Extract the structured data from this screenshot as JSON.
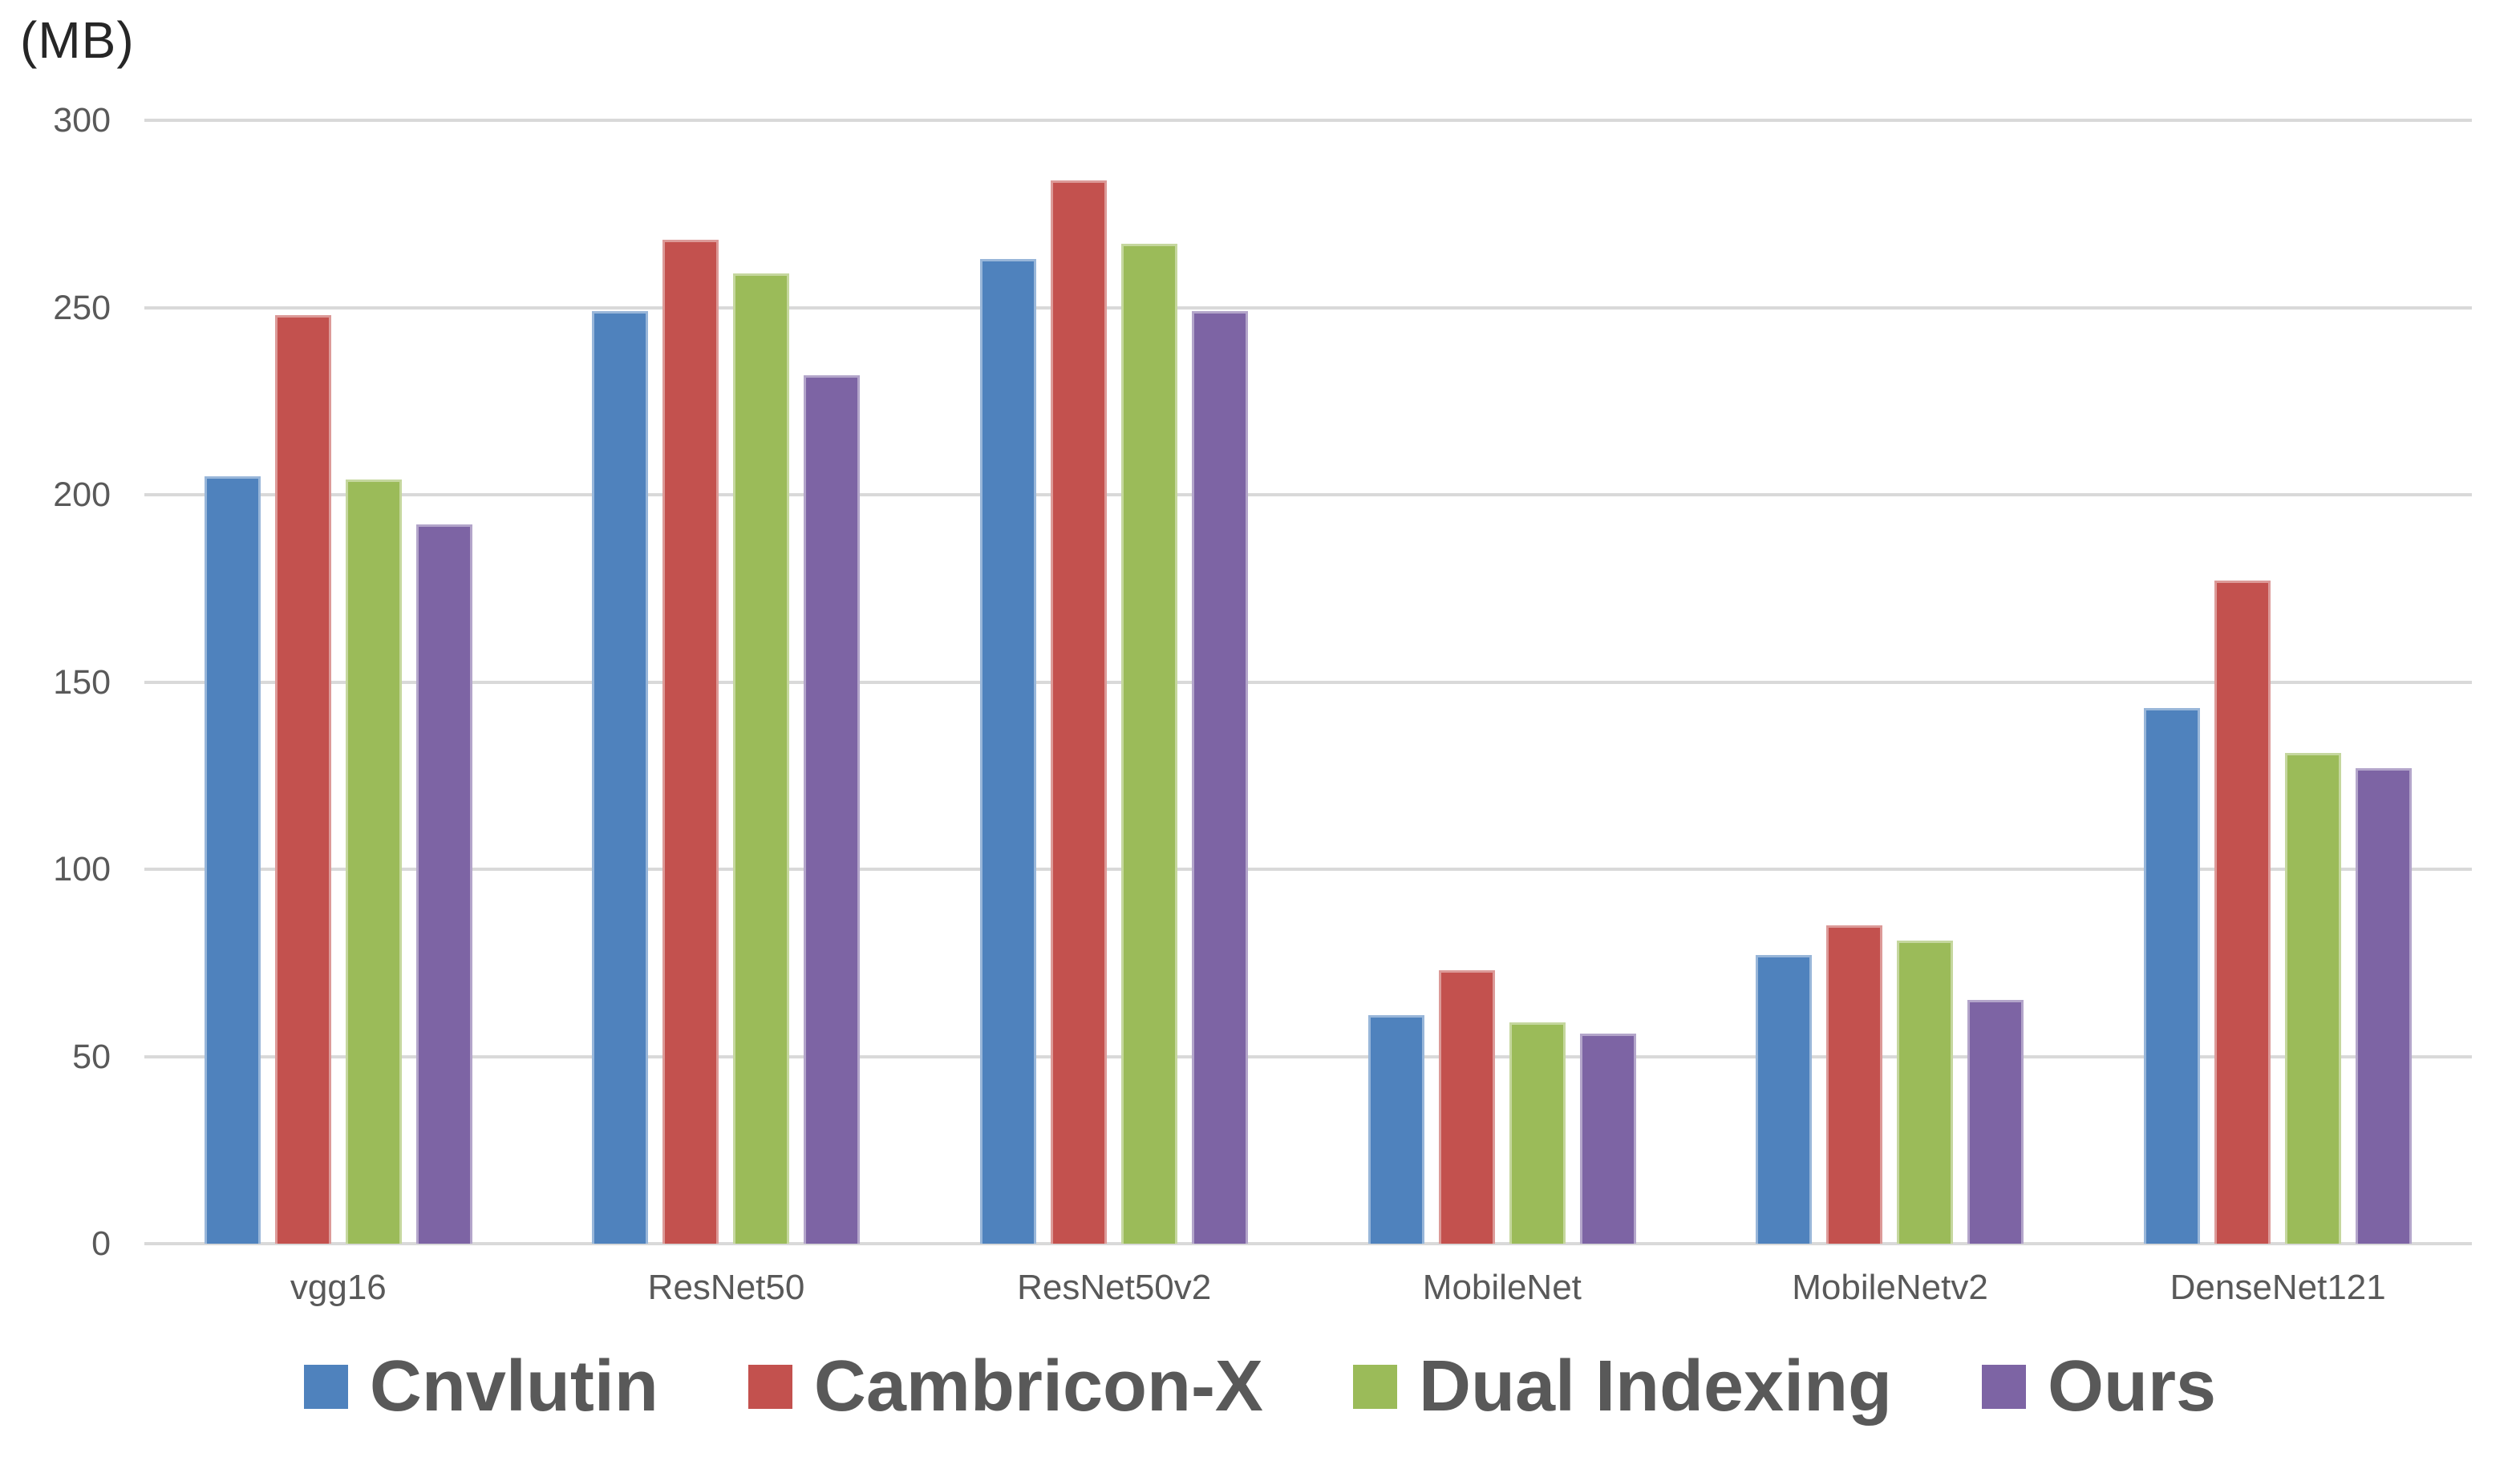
{
  "chart_data": {
    "type": "bar",
    "title": "",
    "ylabel": "(MB)",
    "xlabel": "",
    "ylim": [
      0,
      300
    ],
    "yticks": [
      300,
      250,
      200,
      150,
      100,
      50,
      0
    ],
    "grid": true,
    "legend_position": "bottom",
    "categories": [
      "vgg16",
      "ResNet50",
      "ResNet50v2",
      "MobileNet",
      "MobileNetv2",
      "DenseNet121"
    ],
    "series": [
      {
        "name": "Cnvlutin",
        "color": "#4f82bd",
        "values": [
          205,
          249,
          263,
          61,
          77,
          143
        ]
      },
      {
        "name": "Cambricon-X",
        "color": "#c3514e",
        "values": [
          248,
          268,
          284,
          73,
          85,
          177
        ]
      },
      {
        "name": "Dual Indexing",
        "color": "#9bbb59",
        "values": [
          204,
          259,
          267,
          59,
          81,
          131
        ]
      },
      {
        "name": "Ours",
        "color": "#7d64a4",
        "values": [
          192,
          232,
          249,
          56,
          65,
          127
        ]
      }
    ]
  },
  "colors": {
    "gridline": "#d9d9d9",
    "axis_label": "#595959",
    "legend_text": "#595959",
    "title_text": "#262626",
    "background": "#ffffff"
  }
}
